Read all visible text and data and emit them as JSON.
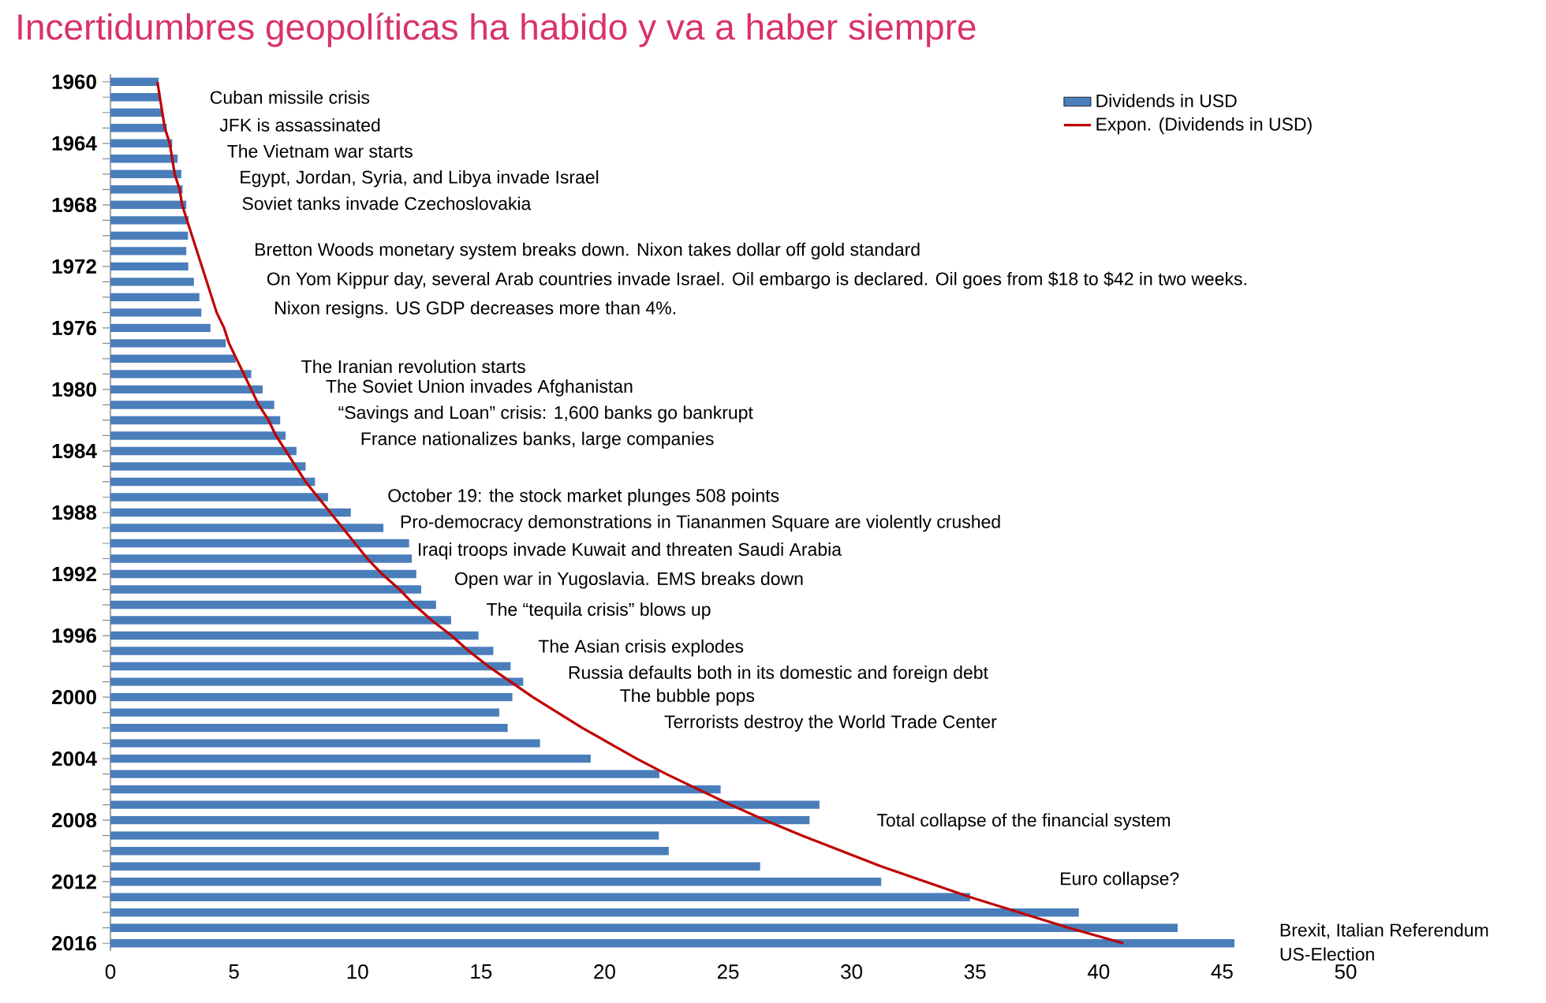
{
  "chart_data": {
    "type": "bar",
    "orientation": "horizontal",
    "title": "Incertidumbres geopolíticas ha habido y va a haber siempre",
    "categories": [
      "1960",
      null,
      null,
      null,
      "1964",
      null,
      null,
      null,
      "1968",
      null,
      null,
      null,
      "1972",
      null,
      null,
      null,
      "1976",
      null,
      null,
      null,
      "1980",
      null,
      null,
      null,
      "1984",
      null,
      null,
      null,
      "1988",
      null,
      null,
      null,
      "1992",
      null,
      null,
      null,
      "1996",
      null,
      null,
      null,
      "2000",
      null,
      null,
      null,
      "2004",
      null,
      null,
      null,
      "2008",
      null,
      null,
      null,
      "2012",
      null,
      null,
      null,
      "2016"
    ],
    "series": [
      {
        "name": "Dividends in USD",
        "color": "#4a7ebb",
        "values": [
          1.95,
          2.02,
          2.13,
          2.28,
          2.5,
          2.72,
          2.87,
          2.92,
          3.07,
          3.16,
          3.14,
          3.07,
          3.15,
          3.38,
          3.6,
          3.68,
          4.05,
          4.67,
          5.07,
          5.7,
          6.16,
          6.63,
          6.87,
          7.09,
          7.53,
          7.9,
          8.28,
          8.81,
          9.73,
          11.05,
          12.09,
          12.2,
          12.38,
          12.58,
          13.18,
          13.79,
          14.9,
          15.5,
          16.2,
          16.71,
          16.27,
          15.74,
          16.08,
          17.39,
          19.44,
          22.22,
          24.7,
          28.7,
          28.3,
          22.2,
          22.6,
          26.3,
          31.2,
          34.8,
          39.2,
          43.2,
          45.5
        ]
      },
      {
        "name": "Expon. (Dividends in USD)",
        "type": "line",
        "color": "#c00000",
        "values": [
          1.9,
          2.0,
          2.1,
          2.2,
          2.4,
          2.5,
          2.6,
          2.8,
          2.9,
          3.1,
          3.3,
          3.5,
          3.7,
          3.9,
          4.1,
          4.3,
          4.6,
          4.8,
          5.1,
          5.4,
          5.7,
          6.0,
          6.4,
          6.7,
          7.1,
          7.5,
          7.9,
          8.4,
          8.9,
          9.4,
          9.9,
          10.4,
          11.0,
          11.7,
          12.3,
          13.0,
          13.8,
          14.5,
          15.3,
          16.2,
          17.1,
          18.1,
          19.1,
          20.2,
          21.3,
          22.5,
          23.8,
          25.1,
          26.5,
          28.0,
          29.6,
          31.2,
          33.0,
          34.8,
          36.8,
          38.8,
          41.0
        ]
      }
    ],
    "xlim": [
      0,
      50
    ],
    "xticks": [
      0,
      5,
      10,
      15,
      20,
      25,
      30,
      35,
      40,
      45,
      50
    ],
    "legend": "top right",
    "annotations": [
      "Cuban missile crisis",
      "JFK is assassinated",
      "The Vietnam war starts",
      "Egypt, Jordan, Syria, and Libya invade Israel",
      "Soviet tanks invade Czechoslovakia",
      "Bretton Woods monetary system breaks down. Nixon takes dollar off gold standard",
      "On Yom Kippur day, several Arab countries invade Israel. Oil embargo is declared. Oil goes from $18 to $42 in two weeks.",
      "Nixon resigns. US GDP decreases more than 4%.",
      "The Iranian revolution starts",
      "The Soviet Union invades Afghanistan",
      "“Savings and Loan” crisis: 1,600 banks go bankrupt",
      "France nationalizes banks, large companies",
      "October 19: the stock market plunges 508 points",
      "Pro-democracy demonstrations in Tiananmen Square are violently crushed",
      "Iraqi troops invade Kuwait and threaten Saudi Arabia",
      "Open war in Yugoslavia. EMS breaks down",
      "The “tequila crisis” blows up",
      "The Asian crisis explodes",
      "Russia defaults both in its domestic and foreign debt",
      "The bubble pops",
      "Terrorists destroy the World Trade Center",
      "Total collapse of the financial system",
      "Euro collapse?",
      "Brexit, Italian Referendum",
      "US-Election"
    ]
  }
}
